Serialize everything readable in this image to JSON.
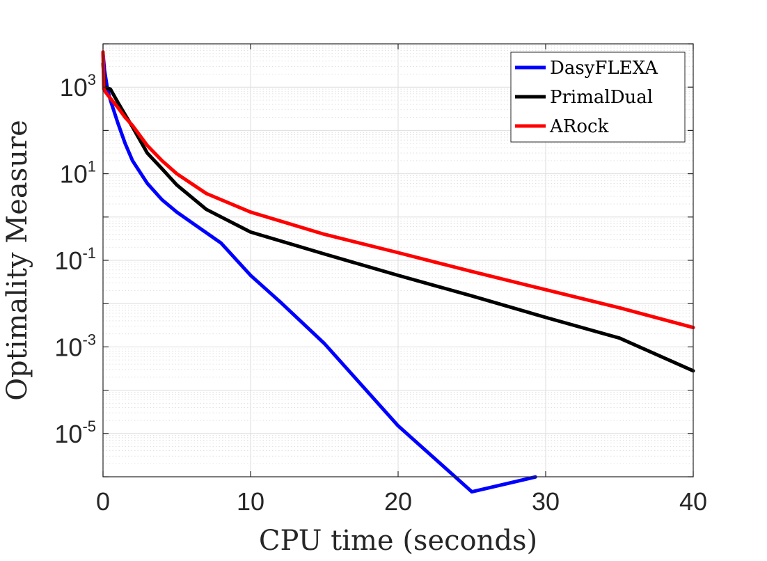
{
  "chart_data": {
    "type": "line",
    "title": "",
    "xlabel": "CPU time (seconds)",
    "ylabel": "Optimality Measure",
    "xlim": [
      0,
      40
    ],
    "ylim": [
      1e-06,
      10000
    ],
    "yscale": "log",
    "grid": true,
    "minor_grid": true,
    "legend_position": "top-right",
    "xticks": [
      {
        "value": 0,
        "label": "0"
      },
      {
        "value": 10,
        "label": "10"
      },
      {
        "value": 20,
        "label": "20"
      },
      {
        "value": 30,
        "label": "30"
      },
      {
        "value": 40,
        "label": "40"
      }
    ],
    "yticks": [
      {
        "value": 1e-05,
        "base": "10",
        "exp": "-5"
      },
      {
        "value": 0.001,
        "base": "10",
        "exp": "-3"
      },
      {
        "value": 0.1,
        "base": "10",
        "exp": "-1"
      },
      {
        "value": 10,
        "base": "10",
        "exp": "1"
      },
      {
        "value": 1000,
        "base": "10",
        "exp": "3"
      }
    ],
    "series": [
      {
        "name": "DasyFLEXA",
        "color": "#0000ff",
        "x": [
          0,
          0.1,
          0.3,
          0.5,
          1,
          1.5,
          2,
          3,
          4,
          5,
          6,
          8,
          10,
          12,
          15,
          20,
          25,
          29.3
        ],
        "y": [
          6000,
          2500,
          900,
          500,
          150,
          50,
          20,
          6,
          2.5,
          1.3,
          0.75,
          0.25,
          0.045,
          0.011,
          0.0012,
          1.5e-05,
          4.5e-07,
          9.9e-07
        ]
      },
      {
        "name": "PrimalDual",
        "color": "#000000",
        "x": [
          0,
          0.1,
          0.5,
          1,
          1.5,
          2,
          3,
          4,
          5,
          7,
          10,
          15,
          20,
          25,
          30,
          35,
          40
        ],
        "y": [
          3500,
          1000,
          900,
          450,
          230,
          120,
          30,
          13,
          5.5,
          1.5,
          0.45,
          0.14,
          0.045,
          0.015,
          0.0048,
          0.0016,
          0.00028
        ]
      },
      {
        "name": "ARock",
        "color": "#ff0000",
        "x": [
          0,
          0.05,
          0.2,
          0.5,
          1,
          1.5,
          2,
          3,
          4,
          5,
          7,
          10,
          15,
          20,
          25,
          30,
          35,
          40
        ],
        "y": [
          6500,
          900,
          750,
          550,
          340,
          200,
          130,
          45,
          20,
          10,
          3.5,
          1.3,
          0.4,
          0.15,
          0.055,
          0.021,
          0.008,
          0.0028
        ]
      }
    ]
  }
}
